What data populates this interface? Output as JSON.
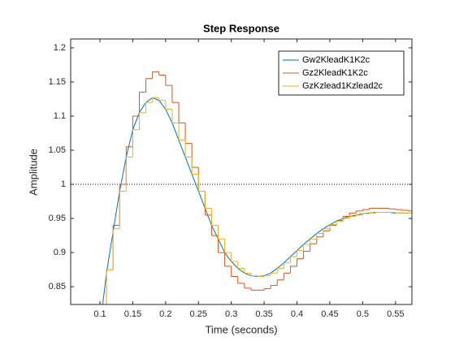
{
  "chart_data": {
    "type": "line",
    "title": "Step Response",
    "xlabel": "Time (seconds)",
    "ylabel": "Amplitude",
    "x": [
      0.1,
      0.11,
      0.12,
      0.13,
      0.14,
      0.15,
      0.16,
      0.17,
      0.18,
      0.19,
      0.2,
      0.21,
      0.22,
      0.23,
      0.24,
      0.25,
      0.26,
      0.27,
      0.28,
      0.29,
      0.3,
      0.31,
      0.32,
      0.33,
      0.34,
      0.35,
      0.36,
      0.37,
      0.38,
      0.39,
      0.4,
      0.41,
      0.42,
      0.43,
      0.44,
      0.45,
      0.46,
      0.47,
      0.48,
      0.49,
      0.5,
      0.51,
      0.52,
      0.53,
      0.54,
      0.55,
      0.56,
      0.57
    ],
    "series": [
      {
        "name": "Gw2KleadK1K2c",
        "color": "#0072bd",
        "style": "line",
        "values": [
          0.79,
          0.87,
          0.93,
          0.99,
          1.04,
          1.08,
          1.105,
          1.12,
          1.127,
          1.123,
          1.11,
          1.09,
          1.065,
          1.04,
          1.015,
          0.99,
          0.965,
          0.94,
          0.92,
          0.9,
          0.887,
          0.877,
          0.87,
          0.866,
          0.865,
          0.866,
          0.87,
          0.877,
          0.885,
          0.894,
          0.903,
          0.912,
          0.92,
          0.928,
          0.935,
          0.941,
          0.946,
          0.95,
          0.953,
          0.955,
          0.957,
          0.958,
          0.959,
          0.959,
          0.959,
          0.958,
          0.958,
          0.958
        ]
      },
      {
        "name": "Gz2KleadK1K2c",
        "color": "#d95319",
        "style": "stairs",
        "values": [
          0.81,
          0.875,
          0.94,
          1.0,
          1.055,
          1.1,
          1.135,
          1.155,
          1.165,
          1.16,
          1.145,
          1.12,
          1.09,
          1.06,
          1.025,
          0.99,
          0.955,
          0.925,
          0.9,
          0.88,
          0.865,
          0.855,
          0.848,
          0.845,
          0.845,
          0.847,
          0.852,
          0.86,
          0.87,
          0.88,
          0.891,
          0.902,
          0.913,
          0.923,
          0.932,
          0.94,
          0.947,
          0.953,
          0.958,
          0.961,
          0.963,
          0.965,
          0.965,
          0.965,
          0.964,
          0.963,
          0.962,
          0.961
        ]
      },
      {
        "name": "GzKzlead1Kzlead2c",
        "color": "#edb120",
        "style": "stairs",
        "values": [
          0.8,
          0.875,
          0.935,
          0.99,
          1.04,
          1.08,
          1.105,
          1.12,
          1.127,
          1.123,
          1.11,
          1.09,
          1.065,
          1.04,
          1.015,
          0.99,
          0.965,
          0.94,
          0.92,
          0.9,
          0.887,
          0.877,
          0.87,
          0.866,
          0.865,
          0.866,
          0.87,
          0.877,
          0.885,
          0.894,
          0.903,
          0.912,
          0.92,
          0.928,
          0.935,
          0.941,
          0.946,
          0.95,
          0.953,
          0.955,
          0.957,
          0.958,
          0.959,
          0.959,
          0.959,
          0.958,
          0.958,
          0.958
        ]
      }
    ],
    "xlim": [
      0.0555,
      0.575
    ],
    "ylim": [
      0.824,
      1.213
    ],
    "xticks": [
      0.1,
      0.15,
      0.2,
      0.25,
      0.3,
      0.35,
      0.4,
      0.45,
      0.5,
      0.55
    ],
    "yticks": [
      0.85,
      0.9,
      0.95,
      1,
      1.05,
      1.1,
      1.15,
      1.2
    ],
    "yline": 1,
    "legend": "upper right"
  }
}
